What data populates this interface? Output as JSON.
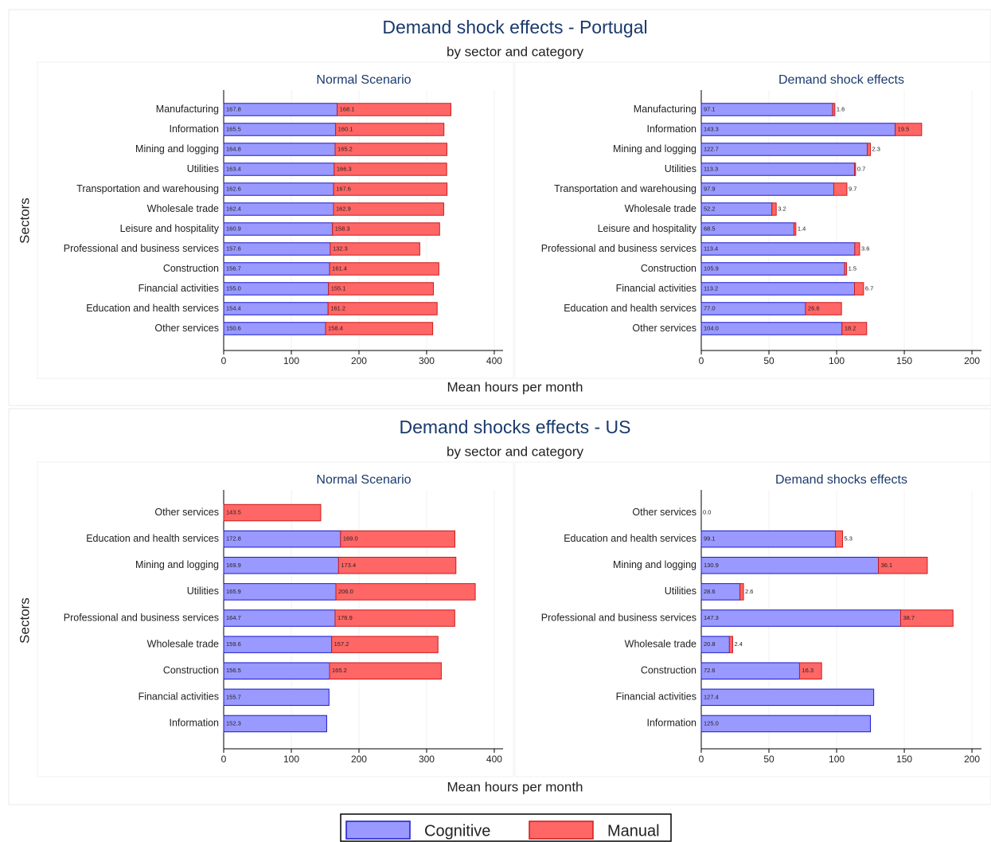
{
  "figures": [
    {
      "title": "Demand shock effects - Portugal",
      "subtitle": "by sector and category",
      "y_label": "Sectors",
      "x_label": "Mean hours per month"
    },
    {
      "title": "Demand shocks effects - US",
      "subtitle": "by sector and category",
      "y_label": "Sectors",
      "x_label": "Mean hours per month"
    }
  ],
  "chart_data": [
    {
      "type": "stacked_barh",
      "title": "Normal Scenario",
      "categories": [
        "Manufacturing",
        "Information",
        "Mining and logging",
        "Utilities",
        "Transportation and warehousing",
        "Wholesale trade",
        "Leisure and hospitality",
        "Professional and business services",
        "Construction",
        "Financial activities",
        "Education and health services",
        "Other services"
      ],
      "series": [
        {
          "name": "Cognitive",
          "color": "#9999ff",
          "stroke": "#1a1acc",
          "values": [
            167.8,
            165.5,
            164.8,
            163.4,
            162.6,
            162.4,
            160.9,
            157.6,
            156.7,
            155.0,
            154.4,
            150.6
          ],
          "value_labels": [
            "167.8",
            "165.5",
            "164.8",
            "163.4",
            "162.6",
            "162.4",
            "160.9",
            "157.6",
            "156.7",
            "155.0",
            "154.4",
            "150.6"
          ]
        },
        {
          "name": "Manual",
          "color": "#ff6666",
          "stroke": "#cc1a1a",
          "values": [
            168.1,
            160.1,
            165.2,
            166.3,
            167.6,
            162.9,
            158.3,
            132.3,
            161.4,
            155.1,
            161.2,
            158.4
          ],
          "value_labels": [
            "168.1",
            "160.1",
            "165.2",
            "166.3",
            "167.6",
            "162.9",
            "158.3",
            "132.3",
            "161.4",
            "155.1",
            "161.2",
            "158.4"
          ]
        }
      ],
      "xlim": [
        0,
        413
      ],
      "xticks": [
        0,
        100,
        200,
        300,
        400
      ],
      "grid": true
    },
    {
      "type": "stacked_barh",
      "title": "Demand shock effects",
      "categories": [
        "Manufacturing",
        "Information",
        "Mining and logging",
        "Utilities",
        "Transportation and warehousing",
        "Wholesale trade",
        "Leisure and hospitality",
        "Professional and business services",
        "Construction",
        "Financial activities",
        "Education and health services",
        "Other services"
      ],
      "series": [
        {
          "name": "Cognitive",
          "color": "#9999ff",
          "stroke": "#1a1acc",
          "values": [
            97.1,
            143.3,
            122.7,
            113.3,
            97.9,
            52.2,
            68.5,
            113.4,
            105.9,
            113.2,
            77.0,
            104.0
          ],
          "value_labels": [
            "97.1",
            "143.3",
            "122.7",
            "113.3",
            "97.9",
            "52.2",
            "68.5",
            "113.4",
            "105.9",
            "113.2",
            "77.0",
            "104.0"
          ]
        },
        {
          "name": "Manual",
          "color": "#ff6666",
          "stroke": "#cc1a1a",
          "values": [
            1.6,
            19.5,
            2.3,
            0.7,
            9.7,
            3.2,
            1.4,
            3.6,
            1.5,
            6.7,
            26.6,
            18.2
          ],
          "value_labels": [
            "1.6",
            "19.5",
            "2.3",
            "0.7",
            "9.7",
            "3.2",
            "1.4",
            "3.6",
            "1.5",
            "6.7",
            "26.6",
            "18.2"
          ]
        }
      ],
      "xlim": [
        0,
        207
      ],
      "xticks": [
        0,
        50,
        100,
        150,
        200
      ],
      "grid": true
    },
    {
      "type": "stacked_barh",
      "title": "Normal Scenario",
      "categories": [
        "Other services",
        "Education and health services",
        "Mining and logging",
        "Utilities",
        "Professional and business services",
        "Wholesale trade",
        "Construction",
        "Financial activities",
        "Information"
      ],
      "series": [
        {
          "name": "Cognitive",
          "color": "#9999ff",
          "stroke": "#1a1acc",
          "values": [
            null,
            172.8,
            169.9,
            165.9,
            164.7,
            159.6,
            156.5,
            155.7,
            152.3
          ],
          "value_labels": [
            null,
            "172.8",
            "169.9",
            "165.9",
            "164.7",
            "159.6",
            "156.5",
            "155.7",
            "152.3"
          ]
        },
        {
          "name": "Manual",
          "color": "#ff6666",
          "stroke": "#cc1a1a",
          "values": [
            143.5,
            169.0,
            173.4,
            206.0,
            176.9,
            157.2,
            165.2,
            null,
            null
          ],
          "value_labels": [
            "143.5",
            "169.0",
            "173.4",
            "206.0",
            "176.9",
            "157.2",
            "165.2",
            null,
            null
          ]
        }
      ],
      "xlim": [
        0,
        413
      ],
      "xticks": [
        0,
        100,
        200,
        300,
        400
      ],
      "grid": true
    },
    {
      "type": "stacked_barh",
      "title": "Demand shocks effects",
      "categories": [
        "Other services",
        "Education and health services",
        "Mining and logging",
        "Utilities",
        "Professional and business services",
        "Wholesale trade",
        "Construction",
        "Financial activities",
        "Information"
      ],
      "series": [
        {
          "name": "Cognitive",
          "color": "#9999ff",
          "stroke": "#1a1acc",
          "values": [
            0.0,
            99.1,
            130.9,
            28.6,
            147.3,
            20.8,
            72.6,
            127.4,
            125.0
          ],
          "value_labels": [
            "0.0",
            "99.1",
            "130.9",
            "28.6",
            "147.3",
            "20.8",
            "72.6",
            "127.4",
            "125.0"
          ]
        },
        {
          "name": "Manual",
          "color": "#ff6666",
          "stroke": "#cc1a1a",
          "values": [
            null,
            5.3,
            36.1,
            2.6,
            38.7,
            2.4,
            16.3,
            null,
            null
          ],
          "value_labels": [
            null,
            "5.3",
            "36.1",
            "2.6",
            "38.7",
            "2.4",
            "16.3",
            null,
            null
          ]
        }
      ],
      "xlim": [
        0,
        207
      ],
      "xticks": [
        0,
        50,
        100,
        150,
        200
      ],
      "grid": true
    }
  ]
}
